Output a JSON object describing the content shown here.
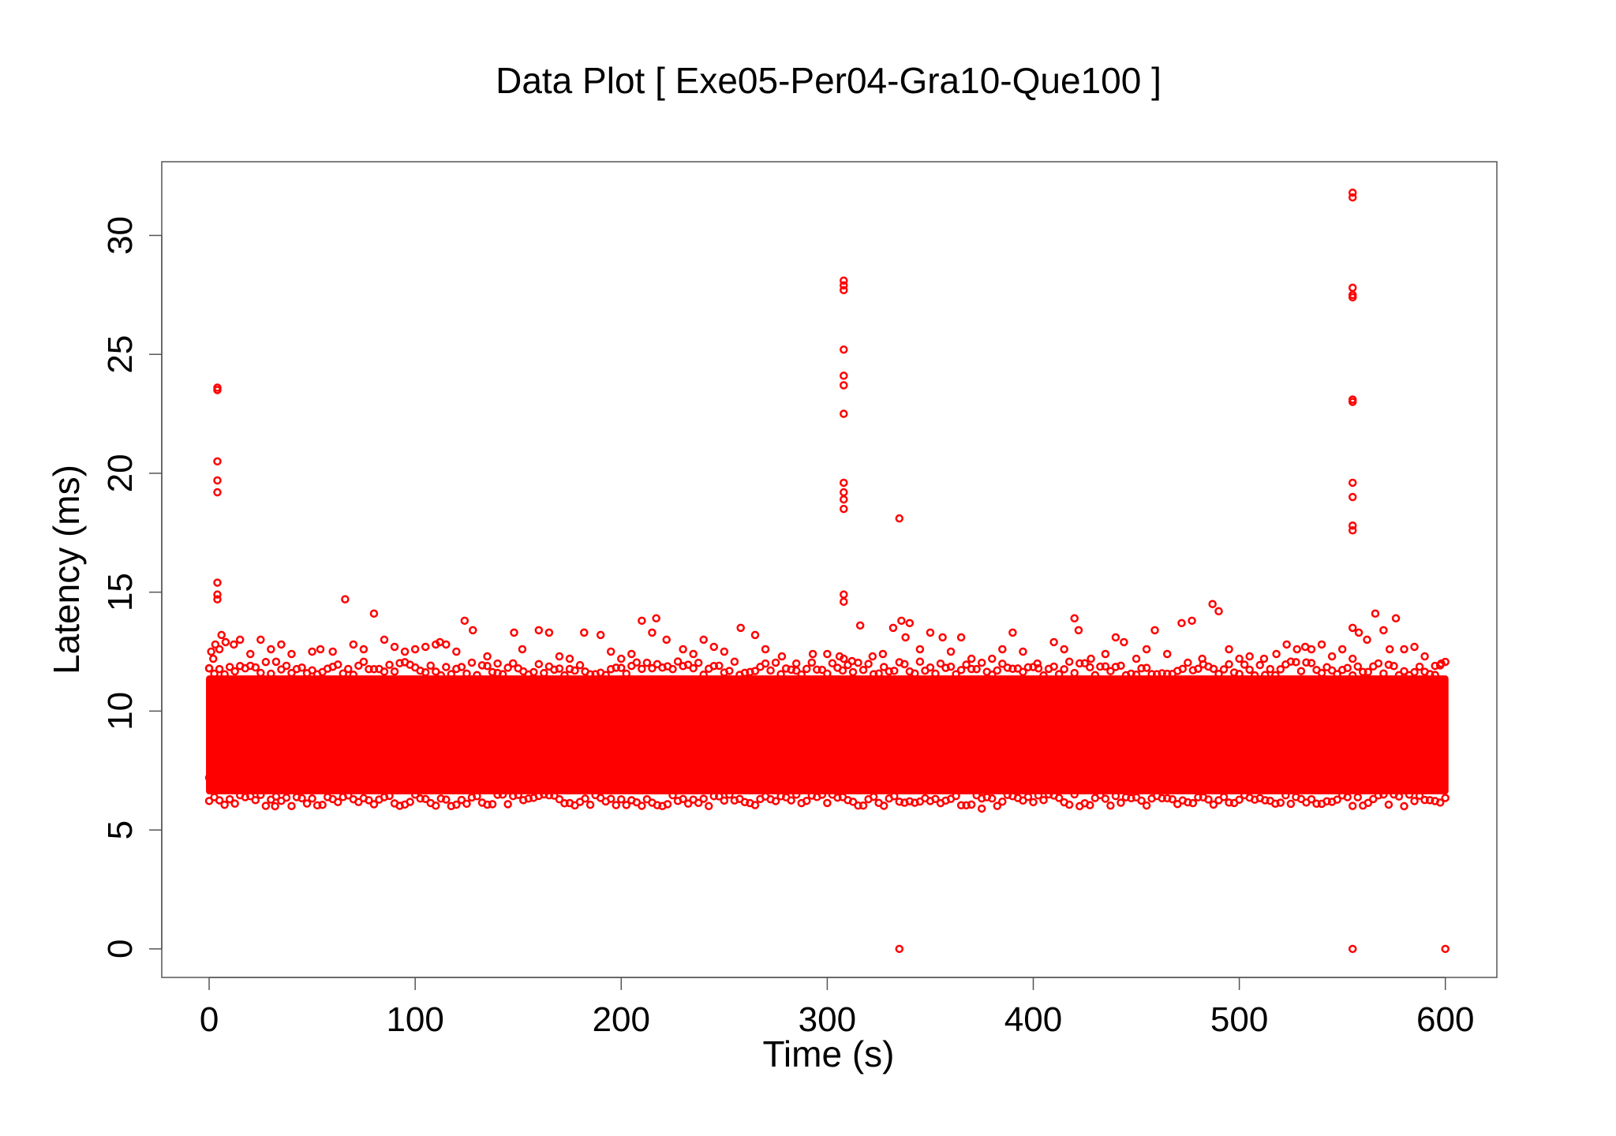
{
  "chart_data": {
    "type": "scatter",
    "title": "Data Plot [ Exe05-Per04-Gra10-Que100 ]",
    "xlabel": "Time (s)",
    "ylabel": "Latency (ms)",
    "xlim": [
      -23,
      625
    ],
    "ylim": [
      -1.2,
      33.1
    ],
    "x_ticks": [
      0,
      100,
      200,
      300,
      400,
      500,
      600
    ],
    "y_ticks": [
      0,
      5,
      10,
      15,
      20,
      25,
      30
    ],
    "grid": false,
    "legend": "none",
    "color": "#ff0000",
    "marker": "open-circle",
    "dense_band": {
      "x_range": [
        0,
        600
      ],
      "y_range": [
        6.5,
        11.5
      ]
    },
    "series": [
      {
        "values": [
          [
            0,
            7.2
          ],
          [
            0,
            11.8
          ],
          [
            1,
            12.5
          ],
          [
            2,
            12.2
          ],
          [
            3,
            12.8
          ],
          [
            4,
            23.6
          ],
          [
            4,
            23.5
          ],
          [
            4,
            20.5
          ],
          [
            4,
            19.7
          ],
          [
            4,
            19.2
          ],
          [
            4,
            15.4
          ],
          [
            4,
            14.9
          ],
          [
            4,
            14.7
          ],
          [
            5,
            12.6
          ],
          [
            6,
            13.2
          ],
          [
            8,
            12.9
          ],
          [
            12,
            12.8
          ],
          [
            15,
            13.0
          ],
          [
            20,
            12.4
          ],
          [
            25,
            13.0
          ],
          [
            30,
            12.6
          ],
          [
            32,
            6.0
          ],
          [
            35,
            12.8
          ],
          [
            40,
            12.4
          ],
          [
            50,
            12.5
          ],
          [
            54,
            12.6
          ],
          [
            60,
            12.5
          ],
          [
            66,
            14.7
          ],
          [
            70,
            12.8
          ],
          [
            75,
            12.6
          ],
          [
            80,
            14.1
          ],
          [
            85,
            13.0
          ],
          [
            90,
            12.7
          ],
          [
            95,
            12.5
          ],
          [
            100,
            12.6
          ],
          [
            105,
            12.7
          ],
          [
            110,
            12.8
          ],
          [
            112,
            12.9
          ],
          [
            115,
            12.8
          ],
          [
            120,
            12.5
          ],
          [
            124,
            13.8
          ],
          [
            128,
            13.4
          ],
          [
            135,
            12.3
          ],
          [
            140,
            12.0
          ],
          [
            148,
            13.3
          ],
          [
            152,
            12.6
          ],
          [
            160,
            13.4
          ],
          [
            165,
            13.3
          ],
          [
            170,
            12.3
          ],
          [
            175,
            12.2
          ],
          [
            182,
            13.3
          ],
          [
            190,
            13.2
          ],
          [
            195,
            12.5
          ],
          [
            200,
            12.2
          ],
          [
            205,
            12.4
          ],
          [
            210,
            13.8
          ],
          [
            215,
            13.3
          ],
          [
            217,
            13.9
          ],
          [
            222,
            13.0
          ],
          [
            230,
            12.6
          ],
          [
            235,
            12.4
          ],
          [
            240,
            13.0
          ],
          [
            245,
            12.7
          ],
          [
            250,
            12.5
          ],
          [
            258,
            13.5
          ],
          [
            265,
            13.2
          ],
          [
            270,
            12.6
          ],
          [
            278,
            12.3
          ],
          [
            285,
            12.0
          ],
          [
            293,
            12.4
          ],
          [
            300,
            12.4
          ],
          [
            306,
            12.3
          ],
          [
            308,
            28.1
          ],
          [
            308,
            27.9
          ],
          [
            308,
            27.7
          ],
          [
            308,
            25.2
          ],
          [
            308,
            24.1
          ],
          [
            308,
            23.7
          ],
          [
            308,
            22.5
          ],
          [
            308,
            19.6
          ],
          [
            308,
            19.2
          ],
          [
            308,
            18.9
          ],
          [
            308,
            18.5
          ],
          [
            308,
            14.9
          ],
          [
            308,
            14.6
          ],
          [
            308,
            12.2
          ],
          [
            312,
            12.1
          ],
          [
            316,
            13.6
          ],
          [
            322,
            12.3
          ],
          [
            327,
            12.4
          ],
          [
            332,
            13.5
          ],
          [
            335,
            18.1
          ],
          [
            335,
            0
          ],
          [
            336,
            13.8
          ],
          [
            338,
            13.1
          ],
          [
            340,
            13.7
          ],
          [
            345,
            12.6
          ],
          [
            350,
            13.3
          ],
          [
            356,
            13.1
          ],
          [
            360,
            12.5
          ],
          [
            365,
            13.1
          ],
          [
            370,
            12.2
          ],
          [
            375,
            5.9
          ],
          [
            380,
            12.2
          ],
          [
            385,
            12.6
          ],
          [
            390,
            13.3
          ],
          [
            395,
            12.5
          ],
          [
            402,
            12.0
          ],
          [
            410,
            12.9
          ],
          [
            415,
            12.6
          ],
          [
            420,
            13.9
          ],
          [
            422,
            13.4
          ],
          [
            428,
            12.2
          ],
          [
            435,
            12.4
          ],
          [
            440,
            13.1
          ],
          [
            444,
            12.9
          ],
          [
            450,
            12.2
          ],
          [
            455,
            12.6
          ],
          [
            459,
            13.4
          ],
          [
            465,
            12.4
          ],
          [
            472,
            13.7
          ],
          [
            477,
            13.8
          ],
          [
            482,
            12.2
          ],
          [
            487,
            14.5
          ],
          [
            490,
            14.2
          ],
          [
            495,
            12.6
          ],
          [
            500,
            12.2
          ],
          [
            505,
            12.3
          ],
          [
            512,
            12.2
          ],
          [
            518,
            12.4
          ],
          [
            523,
            12.8
          ],
          [
            528,
            12.6
          ],
          [
            532,
            12.7
          ],
          [
            535,
            12.6
          ],
          [
            540,
            12.8
          ],
          [
            545,
            12.3
          ],
          [
            550,
            12.6
          ],
          [
            555,
            31.8
          ],
          [
            555,
            31.6
          ],
          [
            555,
            27.8
          ],
          [
            555,
            27.5
          ],
          [
            555,
            27.4
          ],
          [
            555,
            23.1
          ],
          [
            555,
            23.0
          ],
          [
            555,
            19.6
          ],
          [
            555,
            19.0
          ],
          [
            555,
            17.8
          ],
          [
            555,
            17.6
          ],
          [
            555,
            13.5
          ],
          [
            555,
            12.2
          ],
          [
            555,
            0
          ],
          [
            558,
            13.3
          ],
          [
            562,
            13.0
          ],
          [
            566,
            14.1
          ],
          [
            570,
            13.4
          ],
          [
            573,
            12.6
          ],
          [
            576,
            13.9
          ],
          [
            580,
            12.6
          ],
          [
            585,
            12.7
          ],
          [
            590,
            12.3
          ],
          [
            595,
            11.9
          ],
          [
            598,
            12.0
          ],
          [
            600,
            0
          ]
        ]
      }
    ]
  }
}
